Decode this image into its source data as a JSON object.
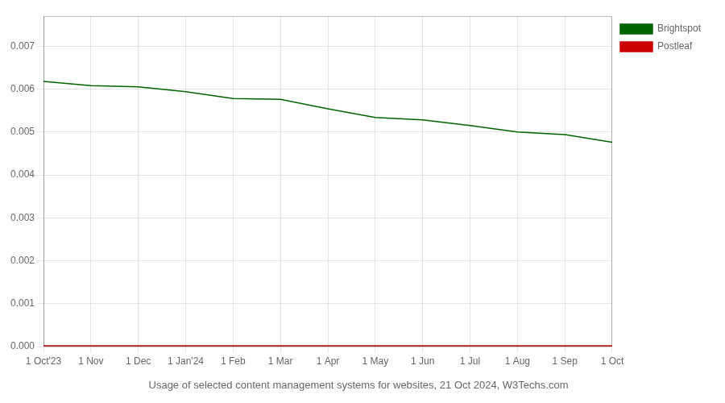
{
  "chart_data": {
    "type": "line",
    "title": "Usage of selected content management systems for websites, 21 Oct 2024, W3Techs.com",
    "categories": [
      "1 Oct'23",
      "1 Nov",
      "1 Dec",
      "1 Jan'24",
      "1 Feb",
      "1 Mar",
      "1 Apr",
      "1 May",
      "1 Jun",
      "1 Jul",
      "1 Aug",
      "1 Sep",
      "1 Oct"
    ],
    "series": [
      {
        "name": "Brightspot",
        "color": "#006400",
        "values": [
          0.00618,
          0.00608,
          0.00605,
          0.00594,
          0.00578,
          0.00576,
          0.00554,
          0.00534,
          0.00528,
          0.00515,
          0.005,
          0.00494,
          0.00476
        ]
      },
      {
        "name": "Postleaf",
        "color": "#cc0000",
        "values": [
          2e-05,
          2e-05,
          2e-05,
          2e-05,
          2e-05,
          2e-05,
          2e-05,
          2e-05,
          2e-05,
          2e-05,
          2e-05,
          2e-05,
          2e-05
        ]
      }
    ],
    "ylim": [
      0,
      0.0077
    ],
    "yticks": [
      {
        "value": 0,
        "label": "0.000"
      },
      0.001,
      0.002,
      0.003,
      0.004,
      0.005,
      0.006,
      0.007
    ],
    "grid": true,
    "legend": "right"
  }
}
